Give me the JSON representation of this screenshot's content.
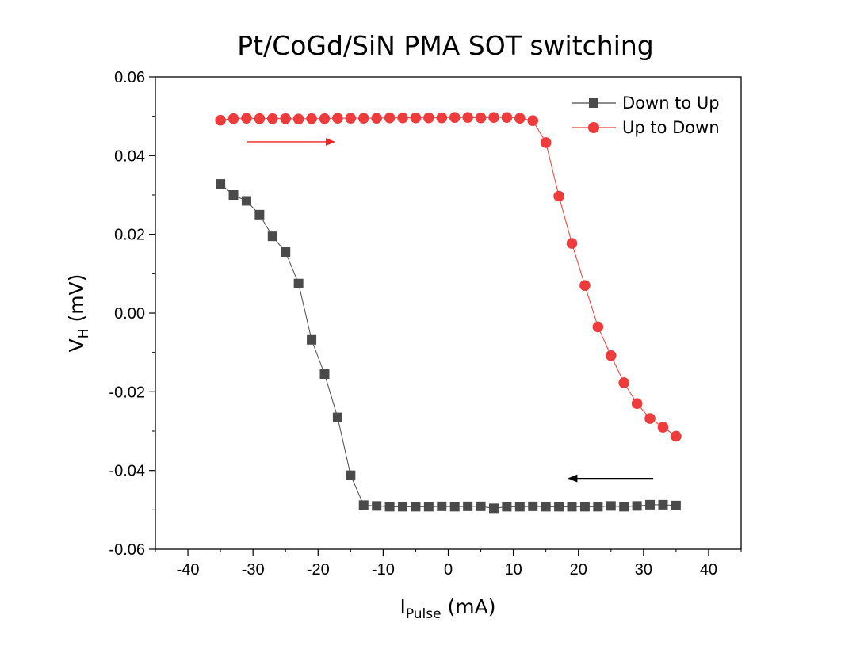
{
  "chart_data": {
    "type": "scatter",
    "title": "Pt/CoGd/SiN PMA SOT switching",
    "xlabel_main": "I",
    "xlabel_sub": "Pulse",
    "xlabel_unit": " (mA)",
    "ylabel_main": "V",
    "ylabel_sub": "H",
    "ylabel_unit": " (mV)",
    "xlim": [
      -45,
      45
    ],
    "ylim": [
      -0.06,
      0.06
    ],
    "xticks": [
      -40,
      -30,
      -20,
      -10,
      0,
      10,
      20,
      30,
      40
    ],
    "xtick_labels": [
      "-40",
      "-30",
      "-20",
      "-10",
      "0",
      "10",
      "20",
      "30",
      "40"
    ],
    "yticks": [
      -0.06,
      -0.04,
      -0.02,
      0.0,
      0.02,
      0.04,
      0.06
    ],
    "ytick_labels": [
      "-0.06",
      "-0.04",
      "-0.02",
      "0.00",
      "0.02",
      "0.04",
      "0.06"
    ],
    "grid": false,
    "legend_position": "top-right",
    "series": [
      {
        "name": "Down to Up",
        "color": "#4a4a4a",
        "marker": "square",
        "x": [
          -35,
          -33,
          -31,
          -29,
          -27,
          -25,
          -23,
          -21,
          -19,
          -17,
          -15,
          -13,
          -11,
          -9,
          -7,
          -5,
          -3,
          -1,
          1,
          3,
          5,
          7,
          9,
          11,
          13,
          15,
          17,
          19,
          21,
          23,
          25,
          27,
          29,
          31,
          33,
          35
        ],
        "y": [
          0.0328,
          0.03,
          0.0285,
          0.025,
          0.0195,
          0.0155,
          0.0075,
          -0.0068,
          -0.0155,
          -0.0265,
          -0.0412,
          -0.0488,
          -0.049,
          -0.0492,
          -0.0492,
          -0.0492,
          -0.0492,
          -0.0491,
          -0.0492,
          -0.0491,
          -0.0491,
          -0.0496,
          -0.0492,
          -0.0492,
          -0.0491,
          -0.0492,
          -0.0492,
          -0.0492,
          -0.0492,
          -0.0492,
          -0.049,
          -0.0492,
          -0.049,
          -0.0487,
          -0.0487,
          -0.0489
        ]
      },
      {
        "name": "Up to Down",
        "color": "#ee3b3b",
        "marker": "circle",
        "x": [
          -35,
          -33,
          -31,
          -29,
          -27,
          -25,
          -23,
          -21,
          -19,
          -17,
          -15,
          -13,
          -11,
          -9,
          -7,
          -5,
          -3,
          -1,
          1,
          3,
          5,
          7,
          9,
          11,
          13,
          15,
          17,
          19,
          21,
          23,
          25,
          27,
          29,
          31,
          33,
          35
        ],
        "y": [
          0.049,
          0.0494,
          0.0495,
          0.0494,
          0.0494,
          0.0494,
          0.0493,
          0.0494,
          0.0494,
          0.0495,
          0.0495,
          0.0495,
          0.0495,
          0.0496,
          0.0496,
          0.0496,
          0.0496,
          0.0496,
          0.0497,
          0.0497,
          0.0496,
          0.0497,
          0.0497,
          0.0495,
          0.0489,
          0.0433,
          0.0297,
          0.0177,
          0.007,
          -0.0035,
          -0.0108,
          -0.0177,
          -0.023,
          -0.0268,
          -0.029,
          -0.0313
        ]
      }
    ],
    "annotations": [
      {
        "type": "arrow",
        "color": "#ee2222",
        "x_start": -31,
        "x_end": -17.5,
        "y": 0.0435
      },
      {
        "type": "arrow",
        "color": "#000000",
        "x_start": 31.5,
        "x_end": 18.5,
        "y": -0.042
      }
    ]
  }
}
